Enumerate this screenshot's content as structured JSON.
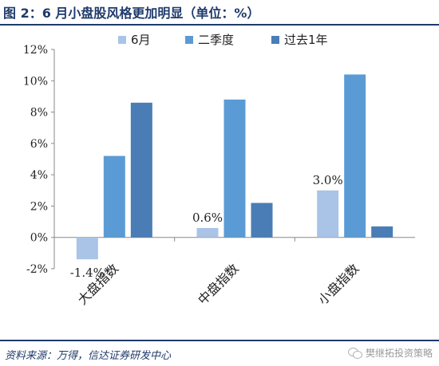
{
  "title": "图 2：6 月小盘股风格更加明显（单位：%）",
  "source": "资料来源：万得，信达证券研发中心",
  "watermark": {
    "text": "樊继拓投资策略",
    "icon": "wechat-icon"
  },
  "chart_data": {
    "type": "bar",
    "categories": [
      "大盘指数",
      "中盘指数",
      "小盘指数"
    ],
    "series": [
      {
        "name": "6月",
        "values": [
          -1.4,
          0.6,
          3.0
        ],
        "color": "#a9c4e6"
      },
      {
        "name": "二季度",
        "values": [
          5.2,
          8.8,
          10.4
        ],
        "color": "#5b9bd5"
      },
      {
        "name": "过去1年",
        "values": [
          8.6,
          2.2,
          0.7
        ],
        "color": "#4a7db5"
      }
    ],
    "data_labels": [
      {
        "series": 0,
        "category": 0,
        "text": "-1.4%"
      },
      {
        "series": 0,
        "category": 1,
        "text": "0.6%"
      },
      {
        "series": 0,
        "category": 2,
        "text": "3.0%"
      }
    ],
    "y_ticks": [
      "-2%",
      "0%",
      "2%",
      "4%",
      "6%",
      "8%",
      "10%",
      "12%"
    ],
    "ylim": [
      -2,
      12
    ],
    "legend_position": "top",
    "grid": false
  }
}
